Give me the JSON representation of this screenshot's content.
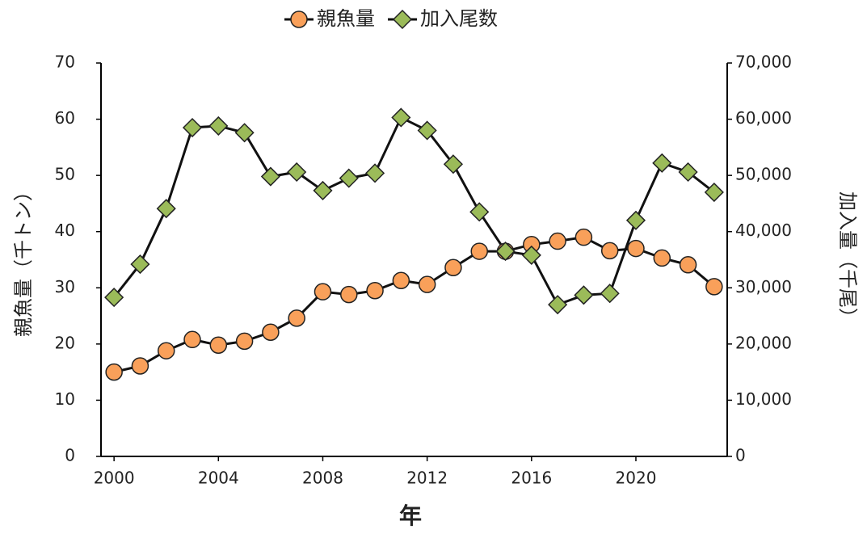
{
  "chart_data": {
    "type": "line",
    "x_label": "年",
    "y_label": "親魚量（千トン）",
    "y2_label": "加入量（千尾）",
    "x": [
      2000,
      2001,
      2002,
      2003,
      2004,
      2005,
      2006,
      2007,
      2008,
      2009,
      2010,
      2011,
      2012,
      2013,
      2014,
      2015,
      2016,
      2017,
      2018,
      2019,
      2020,
      2021,
      2022,
      2023
    ],
    "xlim": [
      1999.5,
      2023.5
    ],
    "xticks": [
      2000,
      2004,
      2008,
      2012,
      2016,
      2020
    ],
    "ylim": [
      0,
      70
    ],
    "yticks": [
      0,
      10,
      20,
      30,
      40,
      50,
      60,
      70
    ],
    "y2lim": [
      0,
      70000
    ],
    "y2ticks": [
      {
        "value": 0,
        "label": "0"
      },
      {
        "value": 10000,
        "label": "10,000"
      },
      {
        "value": 20000,
        "label": "20,000"
      },
      {
        "value": 30000,
        "label": "30,000"
      },
      {
        "value": 40000,
        "label": "40,000"
      },
      {
        "value": 50000,
        "label": "50,000"
      },
      {
        "value": 60000,
        "label": "60,000"
      },
      {
        "value": 70000,
        "label": "70,000"
      }
    ],
    "legend": "top",
    "series": [
      {
        "name": "親魚量",
        "color": "#f9a05a",
        "marker": "circle",
        "values": [
          15.0,
          16.1,
          18.8,
          20.8,
          19.8,
          20.5,
          22.1,
          24.6,
          29.3,
          28.8,
          29.5,
          31.3,
          30.6,
          33.6,
          36.5,
          36.5,
          37.7,
          38.3,
          39.0,
          36.6,
          37.0,
          35.3,
          34.1,
          30.2
        ]
      },
      {
        "name": "加入尾数",
        "color": "#9bbb59",
        "marker": "diamond",
        "axis": "y2",
        "values": [
          28300,
          34200,
          44100,
          58500,
          58800,
          57600,
          49800,
          50600,
          47300,
          49500,
          50400,
          60300,
          58000,
          52000,
          43500,
          36500,
          35800,
          27000,
          28700,
          29000,
          42000,
          52200,
          50600,
          47000
        ]
      }
    ]
  }
}
